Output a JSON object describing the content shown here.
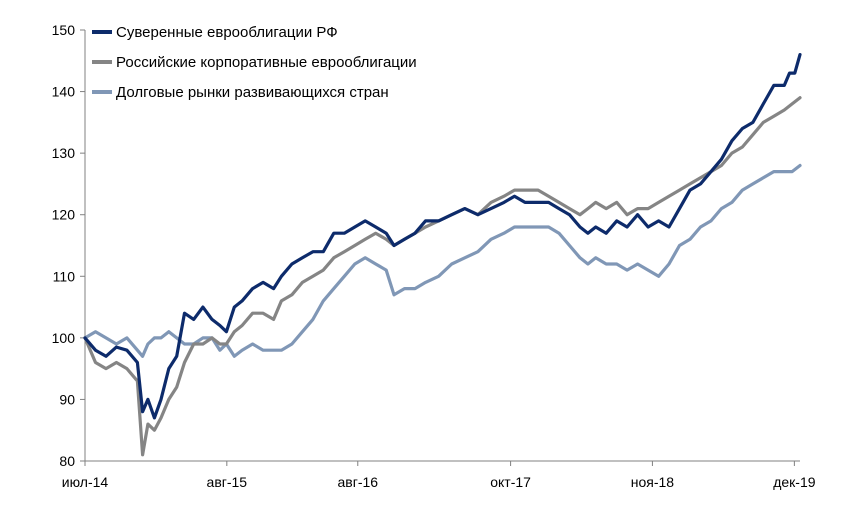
{
  "chart_data": {
    "type": "line",
    "title": "",
    "xlabel": "",
    "ylabel": "",
    "ylim": [
      80,
      150
    ],
    "y_ticks": [
      80,
      90,
      100,
      110,
      120,
      130,
      140,
      150
    ],
    "x_ticks": [
      {
        "label": "июл-14",
        "t": 2014.5
      },
      {
        "label": "авг-15",
        "t": 2015.583
      },
      {
        "label": "авг-16",
        "t": 2016.583
      },
      {
        "label": "окт-17",
        "t": 2017.75
      },
      {
        "label": "ноя-18",
        "t": 2018.833
      },
      {
        "label": "дек-19",
        "t": 2019.917
      }
    ],
    "xlim": [
      2014.5,
      2019.96
    ],
    "grid": false,
    "legend_position": "top-left",
    "series": [
      {
        "name": "Суверенные еврооблигации РФ",
        "color": "#0d2b6b",
        "points": [
          [
            2014.5,
            100
          ],
          [
            2014.58,
            98
          ],
          [
            2014.66,
            97
          ],
          [
            2014.74,
            98.5
          ],
          [
            2014.82,
            98
          ],
          [
            2014.9,
            96
          ],
          [
            2014.94,
            88
          ],
          [
            2014.98,
            90
          ],
          [
            2015.03,
            87
          ],
          [
            2015.08,
            90
          ],
          [
            2015.14,
            95
          ],
          [
            2015.2,
            97
          ],
          [
            2015.26,
            104
          ],
          [
            2015.33,
            103
          ],
          [
            2015.4,
            105
          ],
          [
            2015.47,
            103
          ],
          [
            2015.53,
            102
          ],
          [
            2015.58,
            101
          ],
          [
            2015.64,
            105
          ],
          [
            2015.7,
            106
          ],
          [
            2015.78,
            108
          ],
          [
            2015.86,
            109
          ],
          [
            2015.94,
            108
          ],
          [
            2016.0,
            110
          ],
          [
            2016.08,
            112
          ],
          [
            2016.16,
            113
          ],
          [
            2016.24,
            114
          ],
          [
            2016.32,
            114
          ],
          [
            2016.4,
            117
          ],
          [
            2016.48,
            117
          ],
          [
            2016.56,
            118
          ],
          [
            2016.64,
            119
          ],
          [
            2016.72,
            118
          ],
          [
            2016.8,
            117
          ],
          [
            2016.86,
            115
          ],
          [
            2016.94,
            116
          ],
          [
            2017.02,
            117
          ],
          [
            2017.1,
            119
          ],
          [
            2017.2,
            119
          ],
          [
            2017.3,
            120
          ],
          [
            2017.4,
            121
          ],
          [
            2017.5,
            120
          ],
          [
            2017.6,
            121
          ],
          [
            2017.7,
            122
          ],
          [
            2017.78,
            123
          ],
          [
            2017.86,
            122
          ],
          [
            2017.96,
            122
          ],
          [
            2018.04,
            122
          ],
          [
            2018.12,
            121
          ],
          [
            2018.2,
            120
          ],
          [
            2018.28,
            118
          ],
          [
            2018.34,
            117
          ],
          [
            2018.4,
            118
          ],
          [
            2018.48,
            117
          ],
          [
            2018.56,
            119
          ],
          [
            2018.64,
            118
          ],
          [
            2018.72,
            120
          ],
          [
            2018.8,
            118
          ],
          [
            2018.88,
            119
          ],
          [
            2018.96,
            118
          ],
          [
            2019.04,
            121
          ],
          [
            2019.12,
            124
          ],
          [
            2019.2,
            125
          ],
          [
            2019.28,
            127
          ],
          [
            2019.36,
            129
          ],
          [
            2019.44,
            132
          ],
          [
            2019.52,
            134
          ],
          [
            2019.6,
            135
          ],
          [
            2019.68,
            138
          ],
          [
            2019.76,
            141
          ],
          [
            2019.84,
            141
          ],
          [
            2019.88,
            143
          ],
          [
            2019.92,
            143
          ],
          [
            2019.96,
            146
          ]
        ]
      },
      {
        "name": "Российские корпоративные еврооблигации",
        "color": "#858585",
        "points": [
          [
            2014.5,
            100
          ],
          [
            2014.58,
            96
          ],
          [
            2014.66,
            95
          ],
          [
            2014.74,
            96
          ],
          [
            2014.82,
            95
          ],
          [
            2014.9,
            93
          ],
          [
            2014.94,
            81
          ],
          [
            2014.98,
            86
          ],
          [
            2015.03,
            85
          ],
          [
            2015.08,
            87
          ],
          [
            2015.14,
            90
          ],
          [
            2015.2,
            92
          ],
          [
            2015.26,
            96
          ],
          [
            2015.33,
            99
          ],
          [
            2015.4,
            99
          ],
          [
            2015.47,
            100
          ],
          [
            2015.53,
            99
          ],
          [
            2015.58,
            99
          ],
          [
            2015.64,
            101
          ],
          [
            2015.7,
            102
          ],
          [
            2015.78,
            104
          ],
          [
            2015.86,
            104
          ],
          [
            2015.94,
            103
          ],
          [
            2016.0,
            106
          ],
          [
            2016.08,
            107
          ],
          [
            2016.16,
            109
          ],
          [
            2016.24,
            110
          ],
          [
            2016.32,
            111
          ],
          [
            2016.4,
            113
          ],
          [
            2016.48,
            114
          ],
          [
            2016.56,
            115
          ],
          [
            2016.64,
            116
          ],
          [
            2016.72,
            117
          ],
          [
            2016.8,
            116
          ],
          [
            2016.86,
            115
          ],
          [
            2016.94,
            116
          ],
          [
            2017.02,
            117
          ],
          [
            2017.1,
            118
          ],
          [
            2017.2,
            119
          ],
          [
            2017.3,
            120
          ],
          [
            2017.4,
            121
          ],
          [
            2017.5,
            120
          ],
          [
            2017.6,
            122
          ],
          [
            2017.7,
            123
          ],
          [
            2017.78,
            124
          ],
          [
            2017.86,
            124
          ],
          [
            2017.96,
            124
          ],
          [
            2018.04,
            123
          ],
          [
            2018.12,
            122
          ],
          [
            2018.2,
            121
          ],
          [
            2018.28,
            120
          ],
          [
            2018.34,
            121
          ],
          [
            2018.4,
            122
          ],
          [
            2018.48,
            121
          ],
          [
            2018.56,
            122
          ],
          [
            2018.64,
            120
          ],
          [
            2018.72,
            121
          ],
          [
            2018.8,
            121
          ],
          [
            2018.88,
            122
          ],
          [
            2018.96,
            123
          ],
          [
            2019.04,
            124
          ],
          [
            2019.12,
            125
          ],
          [
            2019.2,
            126
          ],
          [
            2019.28,
            127
          ],
          [
            2019.36,
            128
          ],
          [
            2019.44,
            130
          ],
          [
            2019.52,
            131
          ],
          [
            2019.6,
            133
          ],
          [
            2019.68,
            135
          ],
          [
            2019.76,
            136
          ],
          [
            2019.84,
            137
          ],
          [
            2019.9,
            138
          ],
          [
            2019.96,
            139
          ]
        ]
      },
      {
        "name": "Долговые рынки развивающихся стран",
        "color": "#8097b6",
        "points": [
          [
            2014.5,
            100
          ],
          [
            2014.58,
            101
          ],
          [
            2014.66,
            100
          ],
          [
            2014.74,
            99
          ],
          [
            2014.82,
            100
          ],
          [
            2014.9,
            98
          ],
          [
            2014.94,
            97
          ],
          [
            2014.98,
            99
          ],
          [
            2015.03,
            100
          ],
          [
            2015.08,
            100
          ],
          [
            2015.14,
            101
          ],
          [
            2015.2,
            100
          ],
          [
            2015.26,
            99
          ],
          [
            2015.33,
            99
          ],
          [
            2015.4,
            100
          ],
          [
            2015.47,
            100
          ],
          [
            2015.53,
            98
          ],
          [
            2015.58,
            99
          ],
          [
            2015.64,
            97
          ],
          [
            2015.7,
            98
          ],
          [
            2015.78,
            99
          ],
          [
            2015.86,
            98
          ],
          [
            2015.94,
            98
          ],
          [
            2016.0,
            98
          ],
          [
            2016.08,
            99
          ],
          [
            2016.16,
            101
          ],
          [
            2016.24,
            103
          ],
          [
            2016.32,
            106
          ],
          [
            2016.4,
            108
          ],
          [
            2016.48,
            110
          ],
          [
            2016.56,
            112
          ],
          [
            2016.64,
            113
          ],
          [
            2016.72,
            112
          ],
          [
            2016.8,
            111
          ],
          [
            2016.86,
            107
          ],
          [
            2016.94,
            108
          ],
          [
            2017.02,
            108
          ],
          [
            2017.1,
            109
          ],
          [
            2017.2,
            110
          ],
          [
            2017.3,
            112
          ],
          [
            2017.4,
            113
          ],
          [
            2017.5,
            114
          ],
          [
            2017.6,
            116
          ],
          [
            2017.7,
            117
          ],
          [
            2017.78,
            118
          ],
          [
            2017.86,
            118
          ],
          [
            2017.96,
            118
          ],
          [
            2018.04,
            118
          ],
          [
            2018.12,
            117
          ],
          [
            2018.2,
            115
          ],
          [
            2018.28,
            113
          ],
          [
            2018.34,
            112
          ],
          [
            2018.4,
            113
          ],
          [
            2018.48,
            112
          ],
          [
            2018.56,
            112
          ],
          [
            2018.64,
            111
          ],
          [
            2018.72,
            112
          ],
          [
            2018.8,
            111
          ],
          [
            2018.88,
            110
          ],
          [
            2018.96,
            112
          ],
          [
            2019.04,
            115
          ],
          [
            2019.12,
            116
          ],
          [
            2019.2,
            118
          ],
          [
            2019.28,
            119
          ],
          [
            2019.36,
            121
          ],
          [
            2019.44,
            122
          ],
          [
            2019.52,
            124
          ],
          [
            2019.6,
            125
          ],
          [
            2019.68,
            126
          ],
          [
            2019.76,
            127
          ],
          [
            2019.84,
            127
          ],
          [
            2019.9,
            127
          ],
          [
            2019.96,
            128
          ]
        ]
      }
    ]
  }
}
